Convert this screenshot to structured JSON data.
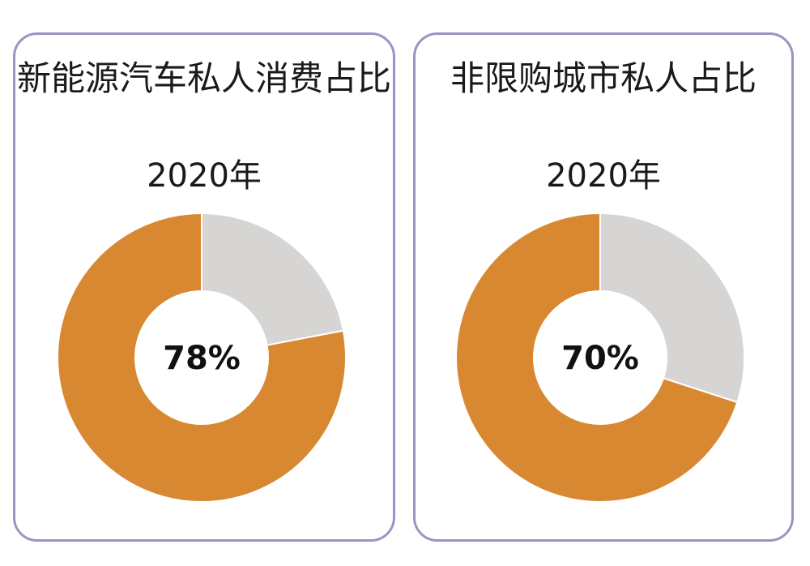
{
  "chart_data": [
    {
      "type": "pie",
      "title": "新能源汽车私人消费占比",
      "subtitle": "2020年",
      "center_label": "78%",
      "values": [
        78,
        22
      ],
      "colors": [
        "#d98832",
        "#d6d5d3"
      ]
    },
    {
      "type": "pie",
      "title": "非限购城市私人占比",
      "subtitle": "2020年",
      "center_label": "70%",
      "values": [
        70,
        30
      ],
      "colors": [
        "#d98832",
        "#d6d5d3"
      ]
    }
  ],
  "style": {
    "panel_border_color": "#9b93c4",
    "text_color": "#1a1a1a"
  }
}
